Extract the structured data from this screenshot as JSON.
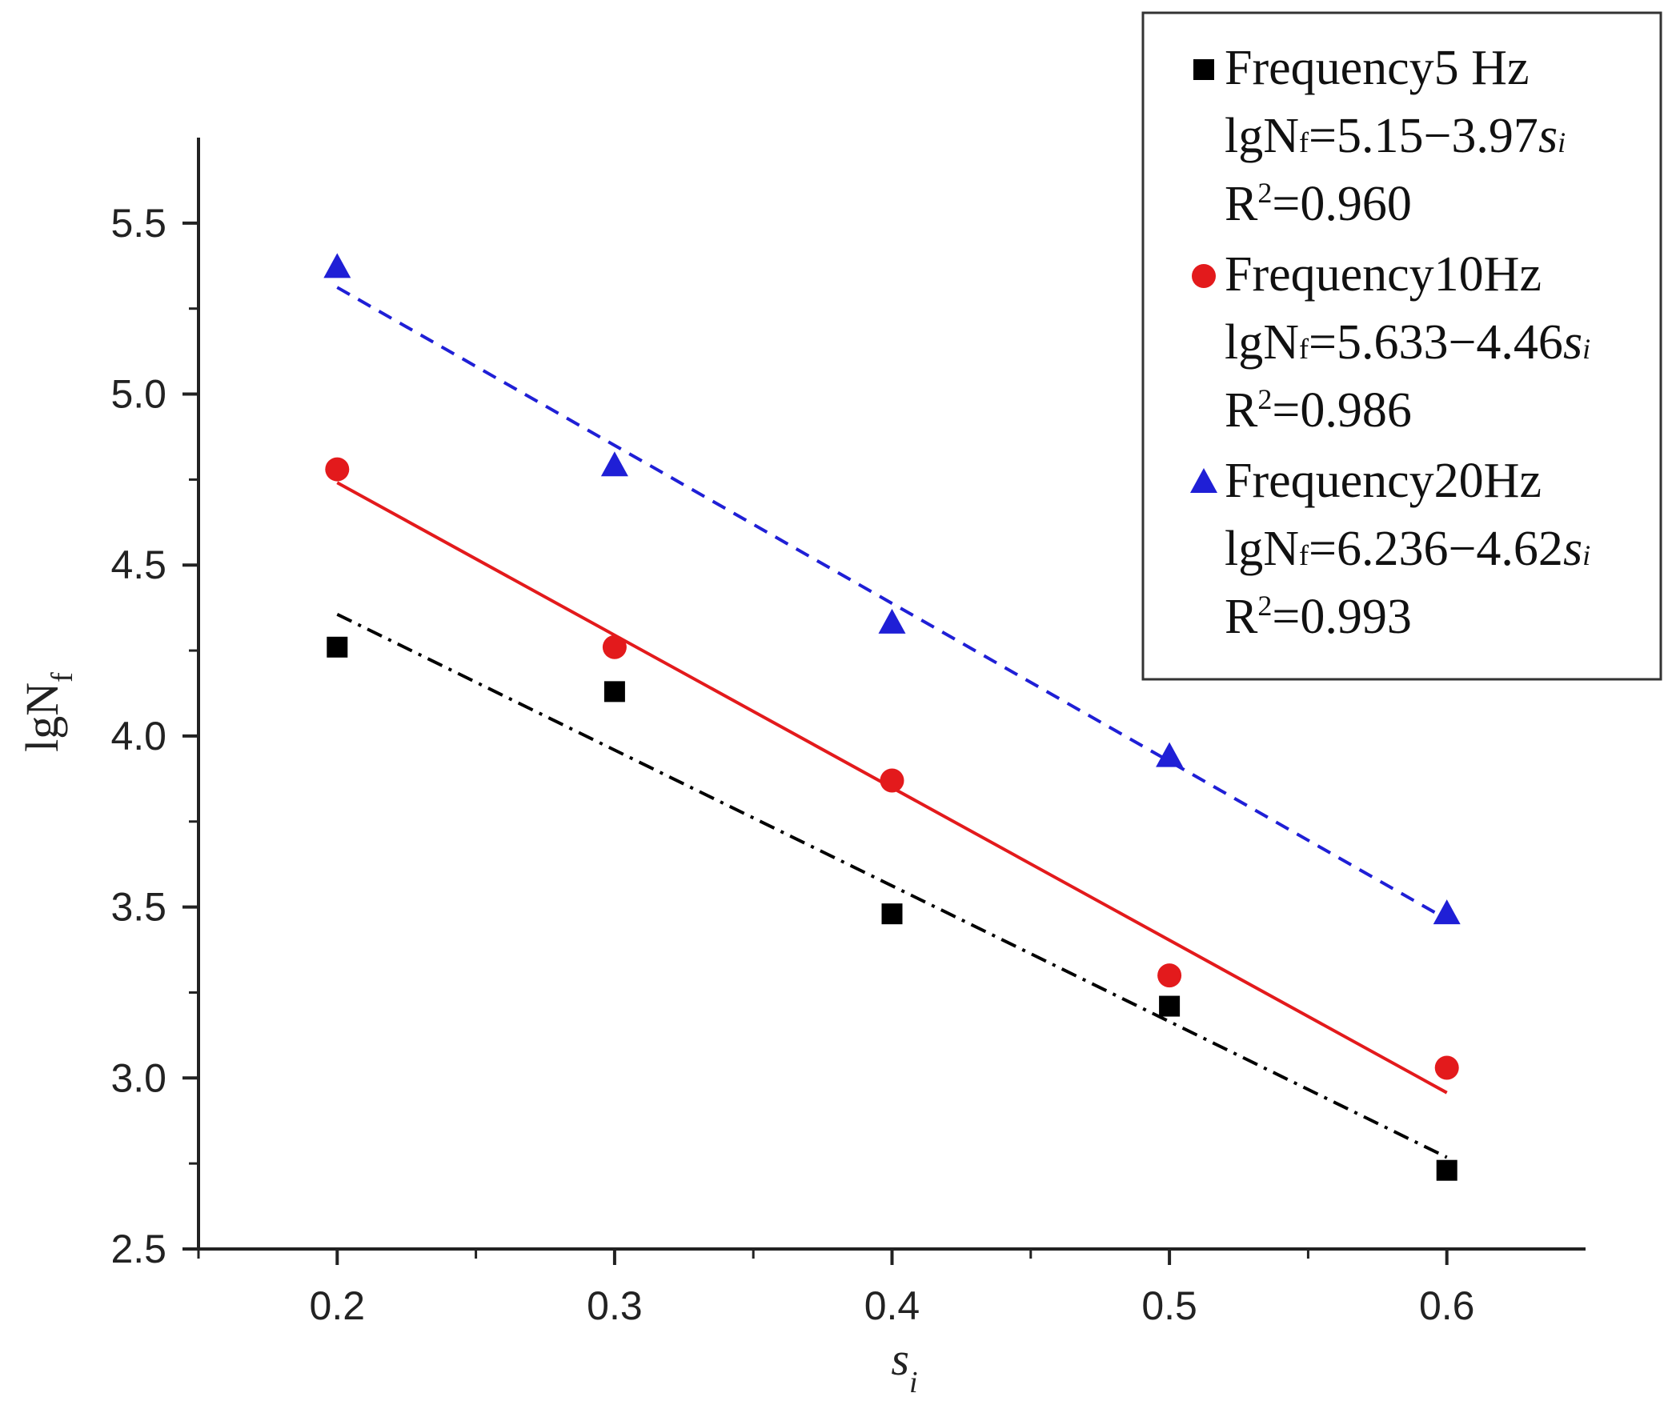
{
  "chart_data": {
    "type": "scatter",
    "title": "",
    "xlabel": "s",
    "xlabel_sub": "i",
    "ylabel": "lgN",
    "ylabel_sub": "f",
    "xlim": [
      0.15,
      0.65
    ],
    "ylim": [
      2.5,
      5.75
    ],
    "xticks": [
      "0.2",
      "0.3",
      "0.4",
      "0.5",
      "0.6"
    ],
    "yticks": [
      "2.5",
      "3.0",
      "3.5",
      "4.0",
      "4.5",
      "5.0",
      "5.5"
    ],
    "grid": false,
    "legend_position": "top-right",
    "series": [
      {
        "name": "Frequency5 Hz",
        "marker": "square",
        "color": "#000000",
        "line_style": "dashdot",
        "x": [
          0.2,
          0.3,
          0.4,
          0.5,
          0.6
        ],
        "y": [
          4.26,
          4.13,
          3.48,
          3.21,
          2.73
        ],
        "fit": {
          "intercept": 5.15,
          "slope": -3.97,
          "x_range": [
            0.2,
            0.6
          ]
        },
        "equation_prefix": "lgN",
        "equation_sub": "f",
        "equation_body": "=5.15−3.97",
        "equation_var": "s",
        "equation_var_sub": "i",
        "r2_prefix": "R",
        "r2_sup": "2",
        "r2_value": "=0.960"
      },
      {
        "name": "Frequency10Hz",
        "marker": "circle",
        "color": "#e31a1c",
        "line_style": "solid",
        "x": [
          0.2,
          0.3,
          0.4,
          0.5,
          0.6
        ],
        "y": [
          4.78,
          4.26,
          3.87,
          3.3,
          3.03
        ],
        "fit": {
          "intercept": 5.633,
          "slope": -4.46,
          "x_range": [
            0.2,
            0.6
          ]
        },
        "equation_prefix": "lgN",
        "equation_sub": "f",
        "equation_body": "=5.633−4.46",
        "equation_var": "s",
        "equation_var_sub": "i",
        "r2_prefix": "R",
        "r2_sup": "2",
        "r2_value": "=0.986"
      },
      {
        "name": "Frequency20Hz",
        "marker": "triangle",
        "color": "#1f1fd6",
        "line_style": "dashed",
        "x": [
          0.2,
          0.3,
          0.4,
          0.5,
          0.6
        ],
        "y": [
          5.37,
          4.79,
          4.33,
          3.94,
          3.48
        ],
        "fit": {
          "intercept": 6.236,
          "slope": -4.62,
          "x_range": [
            0.2,
            0.6
          ]
        },
        "equation_prefix": "lgN",
        "equation_sub": "f",
        "equation_body": "=6.236−4.62",
        "equation_var": "s",
        "equation_var_sub": "i",
        "r2_prefix": "R",
        "r2_sup": "2",
        "r2_value": "=0.993"
      }
    ]
  }
}
